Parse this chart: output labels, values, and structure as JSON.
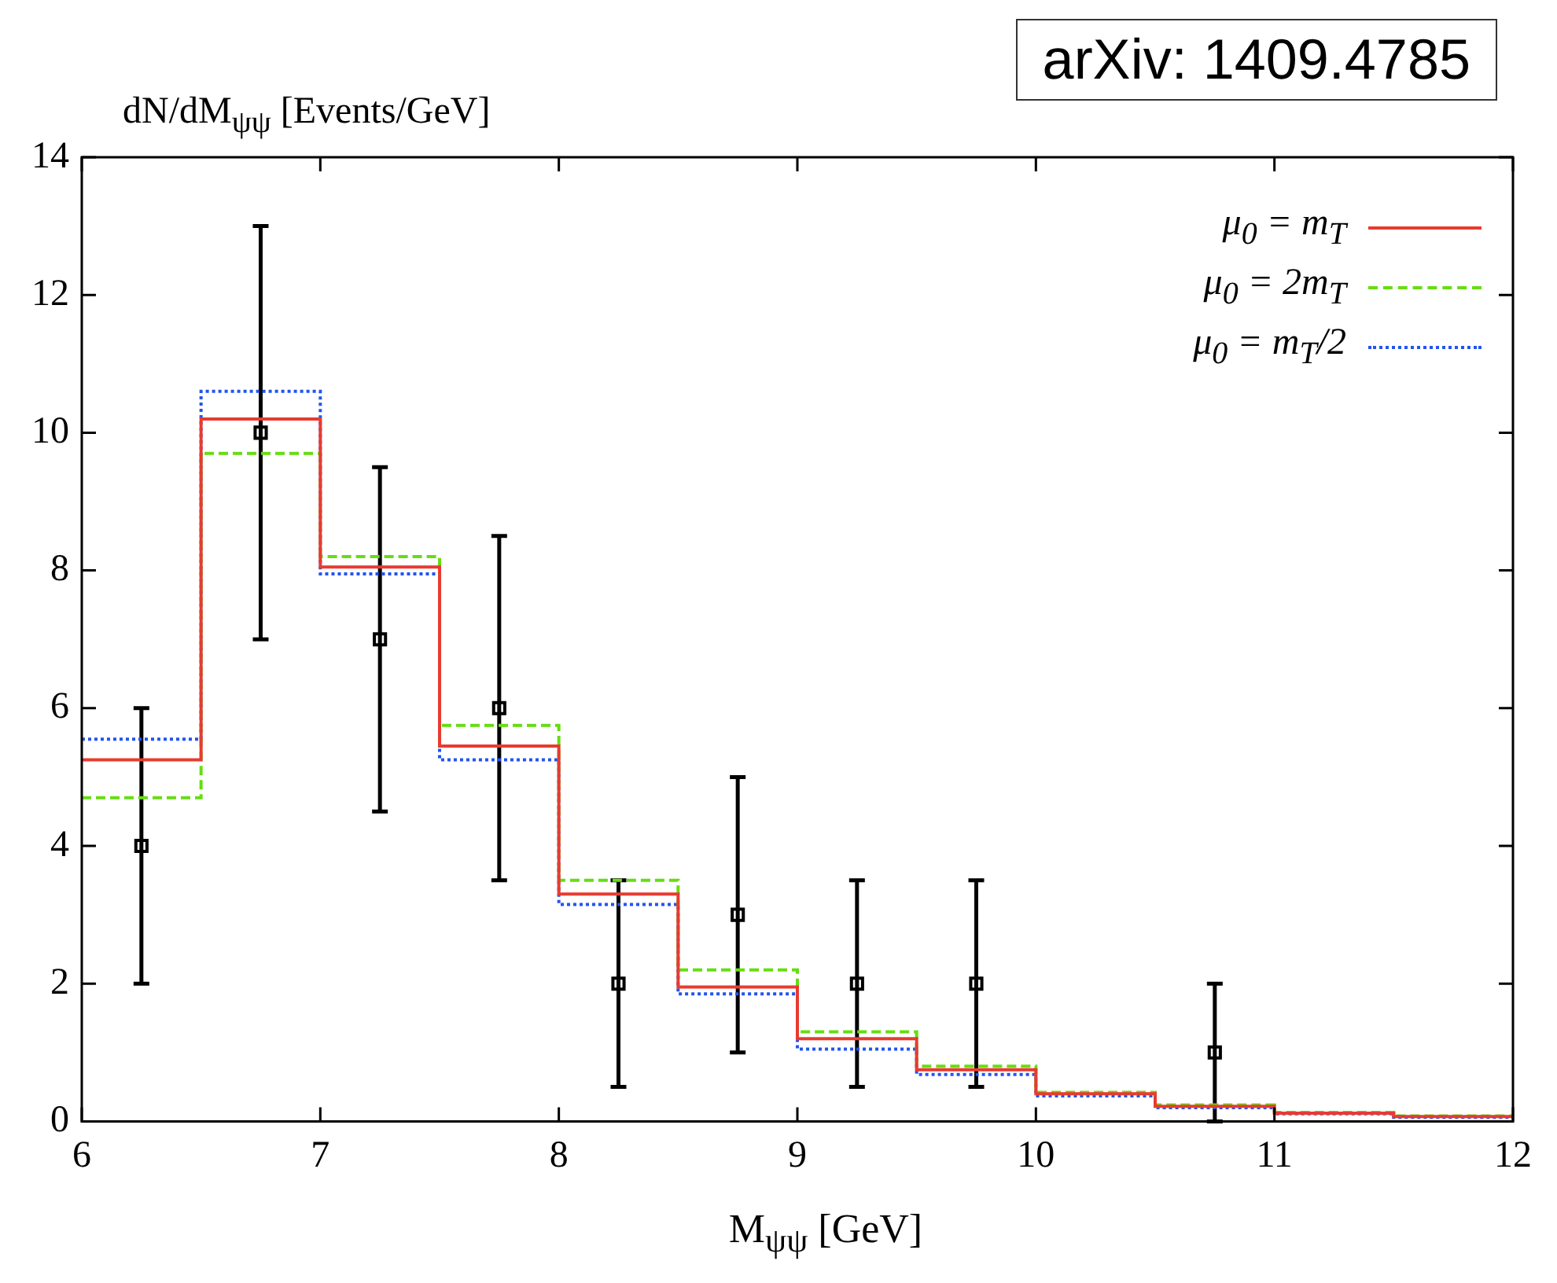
{
  "chart_data": {
    "type": "step",
    "ylabel": "dN/dM$_{ψψ}$ [Events/GeV]",
    "xlabel": "M$_{ψψ}$ [GeV]",
    "annotations": [
      "arXiv: 1409.4785"
    ],
    "xlim": [
      6,
      12
    ],
    "xticks": [
      6,
      7,
      8,
      9,
      10,
      11,
      12
    ],
    "ylim": [
      0,
      14
    ],
    "yticks": [
      0,
      2,
      4,
      6,
      8,
      10,
      12,
      14
    ],
    "legend": "top right",
    "series": [
      {
        "name": "μ$_{0}$ = m$_{T}$",
        "color": "#e83b30",
        "line_style": "solid",
        "x": [
          6,
          6.5,
          7,
          7.5,
          8,
          8.5,
          9,
          9.5,
          10,
          10.5,
          11,
          11.5,
          12
        ],
        "values": [
          5.25,
          10.2,
          8.05,
          5.45,
          3.3,
          1.95,
          1.2,
          0.75,
          0.4,
          0.22,
          0.12,
          0.07,
          0.07
        ]
      },
      {
        "name": "μ$_{0}$ = 2m$_{T}$",
        "color": "#66dd11",
        "line_style": "dashed",
        "x": [
          6,
          6.5,
          7,
          7.5,
          8,
          8.5,
          9,
          9.5,
          10,
          10.5,
          11,
          11.5,
          12
        ],
        "values": [
          4.7,
          9.7,
          8.2,
          5.75,
          3.5,
          2.2,
          1.3,
          0.8,
          0.42,
          0.24,
          0.13,
          0.08,
          0.08
        ]
      },
      {
        "name": "μ$_{0}$ = m$_{T}$/2",
        "color": "#2255ee",
        "line_style": "dotted",
        "x": [
          6,
          6.5,
          7,
          7.5,
          8,
          8.5,
          9,
          9.5,
          10,
          10.5,
          11,
          11.5,
          12
        ],
        "values": [
          5.55,
          10.6,
          7.95,
          5.25,
          3.15,
          1.85,
          1.05,
          0.68,
          0.37,
          0.2,
          0.11,
          0.06,
          0.06
        ]
      },
      {
        "type": "scatter",
        "color": "#000000",
        "marker": "square",
        "x": [
          6.25,
          6.75,
          7.25,
          7.75,
          8.25,
          8.75,
          9.25,
          9.75,
          10.75
        ],
        "values": [
          4,
          10,
          7,
          6,
          2,
          3,
          2,
          2,
          1
        ],
        "errors": [
          [
            2,
            6
          ],
          [
            7,
            13
          ],
          [
            4.5,
            9.5
          ],
          [
            3.5,
            8.5
          ],
          [
            0.5,
            3.5
          ],
          [
            1,
            5
          ],
          [
            0.5,
            3.5
          ],
          [
            0.5,
            3.5
          ],
          [
            0,
            2
          ]
        ]
      }
    ]
  }
}
